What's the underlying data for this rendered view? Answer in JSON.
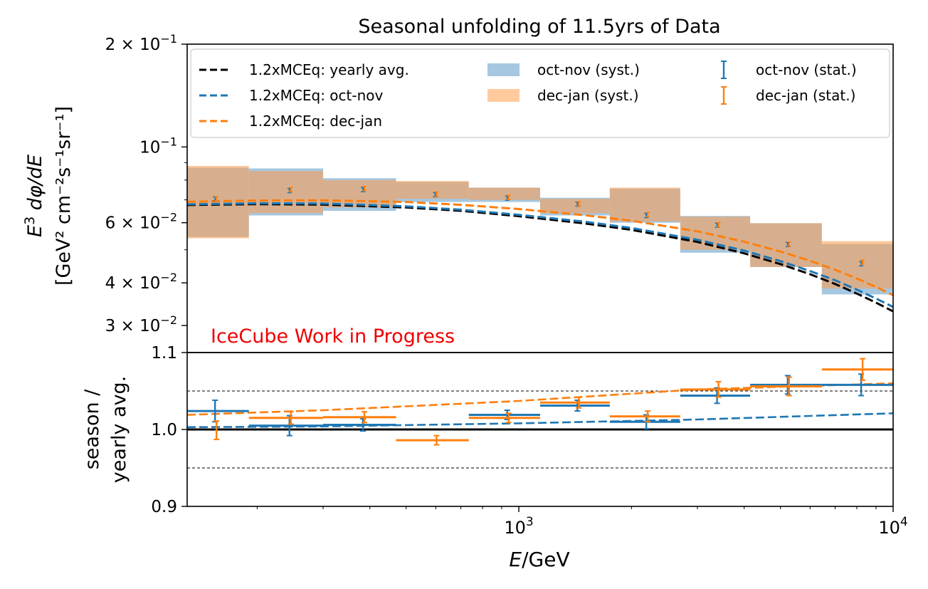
{
  "chart_data": [
    {
      "type": "line",
      "panel": "upper",
      "title": "Seasonal unfolding of 11.5yrs of Data",
      "ylabel_line1": "E^3 dφ/dE",
      "ylabel_line2": "[GeV² cm⁻²s⁻¹sr⁻¹]",
      "xscale": "log",
      "yscale": "log",
      "xlim": [
        130,
        10000
      ],
      "ylim": [
        0.025,
        0.2
      ],
      "yticks": [
        {
          "value": 0.2,
          "base": "2 × 10",
          "exp": "−1"
        },
        {
          "value": 0.1,
          "base": "10",
          "exp": "−1"
        },
        {
          "value": 0.06,
          "base": "6 × 10",
          "exp": "−2"
        },
        {
          "value": 0.04,
          "base": "4 × 10",
          "exp": "−2"
        },
        {
          "value": 0.03,
          "base": "3 × 10",
          "exp": "−2"
        }
      ],
      "annotation": "IceCube Work in Progress",
      "annotation_color": "#ee0000",
      "legend": {
        "placement": "top",
        "entries": [
          {
            "label": "1.2xMCEq: yearly avg.",
            "kind": "dashed",
            "color": "#000000"
          },
          {
            "label": "1.2xMCEq: oct-nov",
            "kind": "dashed",
            "color": "#1f77b4"
          },
          {
            "label": "1.2xMCEq: dec-jan",
            "kind": "dashed",
            "color": "#ff7f0e"
          },
          {
            "label": "oct-nov (syst.)",
            "kind": "band",
            "color": "#a6c7e0"
          },
          {
            "label": "dec-jan (syst.)",
            "kind": "band",
            "color": "#ffcb9e"
          },
          {
            "label": "oct-nov (stat.)",
            "kind": "errorbar",
            "color": "#1f77b4"
          },
          {
            "label": "dec-jan (stat.)",
            "kind": "errorbar",
            "color": "#ff7f0e"
          }
        ]
      },
      "bin_edges": [
        130,
        190,
        300,
        470,
        735,
        1140,
        1750,
        2700,
        4150,
        6450,
        10000
      ],
      "bin_centers": [
        155,
        245,
        385,
        600,
        935,
        1440,
        2200,
        3400,
        5250,
        8250
      ],
      "points_octnov": [
        0.0705,
        0.0745,
        0.075,
        0.0725,
        0.0708,
        0.068,
        0.063,
        0.059,
        0.0518,
        0.0455
      ],
      "points_decjan": [
        0.0705,
        0.075,
        0.0755,
        0.0728,
        0.0712,
        0.0682,
        0.0634,
        0.0592,
        0.052,
        0.046
      ],
      "syst_octnov": [
        [
          0.0545,
          0.087
        ],
        [
          0.063,
          0.0865
        ],
        [
          0.065,
          0.081
        ],
        [
          0.069,
          0.079
        ],
        [
          0.069,
          0.076
        ],
        [
          0.063,
          0.071
        ],
        [
          0.06,
          0.0755
        ],
        [
          0.049,
          0.0628
        ],
        [
          0.0445,
          0.0598
        ],
        [
          0.037,
          0.052
        ]
      ],
      "syst_decjan": [
        [
          0.054,
          0.088
        ],
        [
          0.064,
          0.085
        ],
        [
          0.0665,
          0.08
        ],
        [
          0.0705,
          0.0795
        ],
        [
          0.07,
          0.076
        ],
        [
          0.064,
          0.0705
        ],
        [
          0.0605,
          0.076
        ],
        [
          0.05,
          0.0625
        ],
        [
          0.0445,
          0.0598
        ],
        [
          0.0385,
          0.053
        ]
      ],
      "model_x": [
        130,
        200,
        300,
        500,
        700,
        1000,
        1500,
        2000,
        3000,
        4000,
        5000,
        6000,
        7000,
        8000,
        9000,
        10000
      ],
      "model_yearly": [
        0.0676,
        0.068,
        0.0678,
        0.0665,
        0.065,
        0.0627,
        0.0597,
        0.0572,
        0.0527,
        0.0488,
        0.0454,
        0.0424,
        0.0397,
        0.0372,
        0.035,
        0.033
      ],
      "model_octnov": [
        0.0679,
        0.0684,
        0.0683,
        0.067,
        0.0655,
        0.0633,
        0.0604,
        0.0579,
        0.0535,
        0.0497,
        0.0463,
        0.0433,
        0.0407,
        0.0382,
        0.036,
        0.034
      ],
      "model_decjan": [
        0.0691,
        0.0697,
        0.0698,
        0.069,
        0.0677,
        0.0658,
        0.0631,
        0.0608,
        0.0566,
        0.0528,
        0.0494,
        0.0464,
        0.0437,
        0.0412,
        0.0389,
        0.0368
      ]
    },
    {
      "type": "line",
      "panel": "lower",
      "ylabel_line1": "season /",
      "ylabel_line2": "yearly avg.",
      "xlabel": "E/GeV",
      "xscale": "log",
      "xlim": [
        130,
        10000
      ],
      "ylim": [
        0.9,
        1.1
      ],
      "yticks": [
        0.9,
        1.0,
        1.1
      ],
      "ytick_labels": [
        "0.9",
        "1.0",
        "1.1"
      ],
      "xticks": [
        {
          "value": 1000,
          "base": "10",
          "exp": "3"
        },
        {
          "value": 10000,
          "base": "10",
          "exp": "4"
        }
      ],
      "reference_line": 1.0,
      "guide_lines": [
        0.95,
        1.05
      ],
      "ratio_octnov": [
        1.024,
        1.005,
        1.006,
        1.0,
        1.019,
        1.031,
        1.01,
        1.044,
        1.058,
        1.058
      ],
      "ratio_octnov_err": [
        0.014,
        0.013,
        0.008,
        0.0,
        0.006,
        0.007,
        0.009,
        0.01,
        0.012,
        0.014
      ],
      "ratio_decjan": [
        0.999,
        1.015,
        1.016,
        0.986,
        1.015,
        1.035,
        1.017,
        1.052,
        1.056,
        1.078
      ],
      "ratio_decjan_err": [
        0.012,
        0.008,
        0.007,
        0.006,
        0.006,
        0.007,
        0.007,
        0.01,
        0.012,
        0.014
      ],
      "ratio_octnov_xerr": [
        true,
        true,
        true,
        false,
        true,
        true,
        true,
        true,
        true,
        true
      ],
      "ratio_decjan_xerr": [
        false,
        true,
        true,
        true,
        true,
        true,
        true,
        true,
        true,
        true
      ],
      "model_x": [
        130,
        300,
        1000,
        3000,
        10000
      ],
      "model_ratio_octnov": [
        1.003,
        1.004,
        1.008,
        1.013,
        1.021
      ],
      "model_ratio_decjan": [
        1.019,
        1.025,
        1.037,
        1.052,
        1.06
      ]
    }
  ]
}
